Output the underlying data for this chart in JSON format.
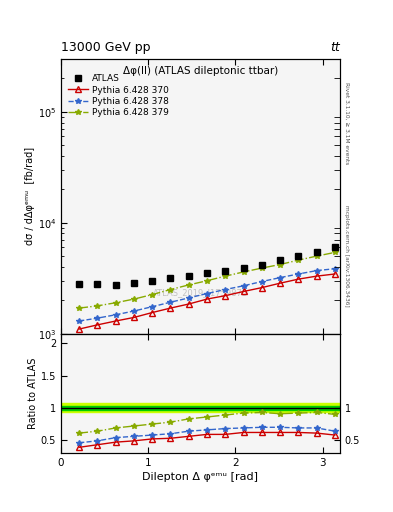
{
  "title_main": "13000 GeV pp",
  "title_right": "tt",
  "plot_title": "Δφ(ll) (ATLAS dileptonic ttbar)",
  "xlabel": "Dilepton Δ φᵉᵐᵘ [rad]",
  "ylabel_main": "dσ / dΔφᵉᵐᵘ  [fb/rad]",
  "ylabel_ratio": "Ratio to ATLAS",
  "watermark": "ATLAS_2019_I1759875",
  "right_label": "mcplots.cern.ch [arXiv:1306.3436]",
  "rivet_label": "Rivet 3.1.10, ≥ 3.1M events",
  "x_data": [
    0.2094,
    0.4189,
    0.6283,
    0.8378,
    1.0472,
    1.2566,
    1.4661,
    1.6755,
    1.885,
    2.0944,
    2.3038,
    2.5133,
    2.7227,
    2.9322,
    3.1416
  ],
  "atlas_y": [
    2800,
    2800,
    2750,
    2850,
    3000,
    3200,
    3300,
    3500,
    3700,
    3900,
    4200,
    4600,
    5000,
    5400,
    6000
  ],
  "py370_y": [
    1100,
    1200,
    1300,
    1400,
    1550,
    1700,
    1850,
    2050,
    2200,
    2400,
    2600,
    2850,
    3100,
    3300,
    3450
  ],
  "py378_y": [
    1300,
    1380,
    1480,
    1600,
    1750,
    1920,
    2100,
    2300,
    2500,
    2700,
    2950,
    3200,
    3450,
    3700,
    3850
  ],
  "py379_y": [
    1700,
    1780,
    1900,
    2050,
    2250,
    2500,
    2750,
    3000,
    3300,
    3600,
    3900,
    4200,
    4600,
    5000,
    5400
  ],
  "ratio_py370": [
    0.39,
    0.43,
    0.47,
    0.49,
    0.52,
    0.53,
    0.56,
    0.59,
    0.59,
    0.62,
    0.62,
    0.62,
    0.62,
    0.61,
    0.58
  ],
  "ratio_py378": [
    0.46,
    0.49,
    0.54,
    0.56,
    0.58,
    0.6,
    0.64,
    0.66,
    0.68,
    0.69,
    0.7,
    0.7,
    0.69,
    0.69,
    0.64
  ],
  "ratio_py379": [
    0.61,
    0.64,
    0.69,
    0.72,
    0.75,
    0.78,
    0.83,
    0.86,
    0.89,
    0.92,
    0.93,
    0.91,
    0.92,
    0.93,
    0.9
  ],
  "color_py370": "#cc0000",
  "color_py378": "#3366cc",
  "color_py379": "#88aa00",
  "atlas_color": "black",
  "atlas_marker": "s",
  "xlim": [
    0.0,
    3.2
  ],
  "ylim_main": [
    1000,
    300000
  ],
  "ratio_band_color_inner": "#00cc00",
  "ratio_band_color_outer": "#ccff00",
  "ratio_band_y1_inner": 0.97,
  "ratio_band_y2_inner": 1.03,
  "ratio_band_y1_outer": 0.93,
  "ratio_band_y2_outer": 1.07,
  "bg_color": "#f5f5f5"
}
